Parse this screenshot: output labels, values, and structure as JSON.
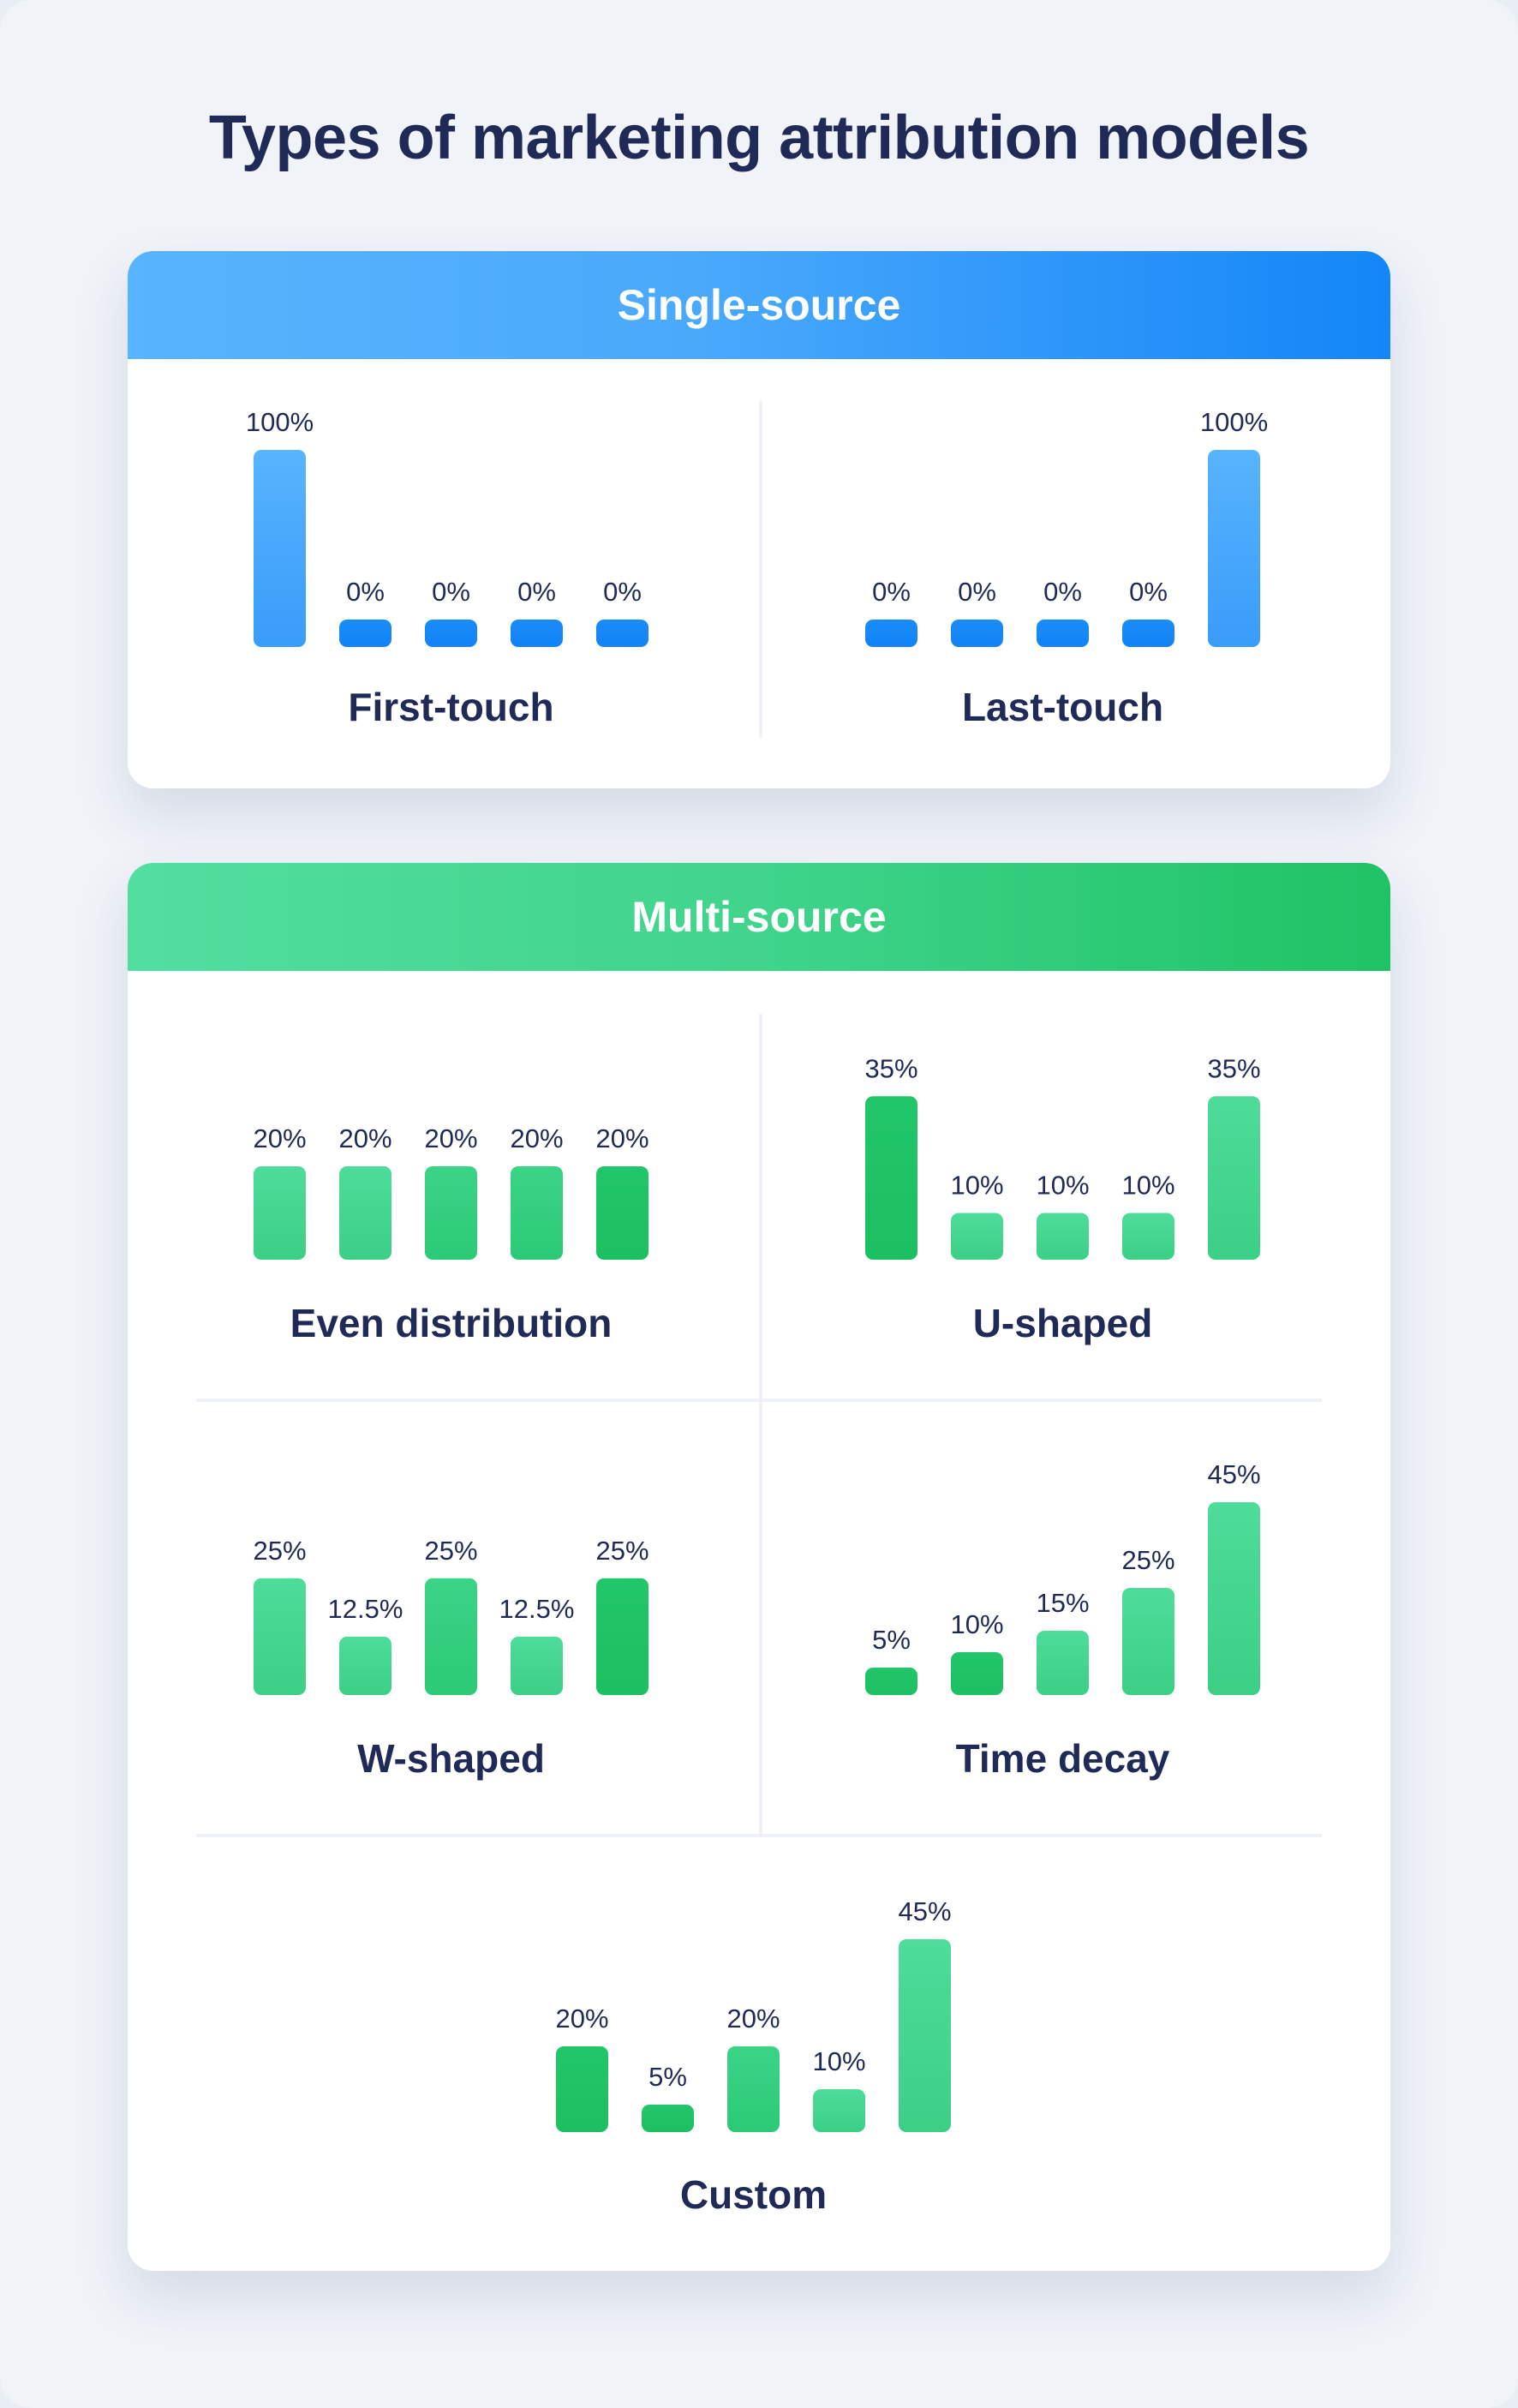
{
  "page": {
    "title": "Types of marketing attribution models"
  },
  "sections": [
    {
      "id": "single",
      "title": "Single-source"
    },
    {
      "id": "multi",
      "title": "Multi-source"
    }
  ],
  "colors": {
    "blue_light": "#57b4fd",
    "blue_dark": "#1486f8",
    "green_light": "#52de9f",
    "green_dark": "#1fc365",
    "text": "#1f2a56"
  },
  "chart_data": [
    {
      "type": "bar",
      "section": "Single-source",
      "title": "First-touch",
      "categories": [
        "",
        "",
        "",
        "",
        ""
      ],
      "values": [
        100,
        0,
        0,
        0,
        0
      ],
      "labels": [
        "100%",
        "0%",
        "0%",
        "0%",
        "0%"
      ],
      "ylim": [
        0,
        100
      ]
    },
    {
      "type": "bar",
      "section": "Single-source",
      "title": "Last-touch",
      "categories": [
        "",
        "",
        "",
        "",
        ""
      ],
      "values": [
        0,
        0,
        0,
        0,
        100
      ],
      "labels": [
        "0%",
        "0%",
        "0%",
        "0%",
        "100%"
      ],
      "ylim": [
        0,
        100
      ]
    },
    {
      "type": "bar",
      "section": "Multi-source",
      "title": "Even distribution",
      "categories": [
        "",
        "",
        "",
        "",
        ""
      ],
      "values": [
        20,
        20,
        20,
        20,
        20
      ],
      "labels": [
        "20%",
        "20%",
        "20%",
        "20%",
        "20%"
      ],
      "ylim": [
        0,
        45
      ]
    },
    {
      "type": "bar",
      "section": "Multi-source",
      "title": "U-shaped",
      "categories": [
        "",
        "",
        "",
        "",
        ""
      ],
      "values": [
        35,
        10,
        10,
        10,
        35
      ],
      "labels": [
        "35%",
        "10%",
        "10%",
        "10%",
        "35%"
      ],
      "ylim": [
        0,
        45
      ]
    },
    {
      "type": "bar",
      "section": "Multi-source",
      "title": "W-shaped",
      "categories": [
        "",
        "",
        "",
        "",
        ""
      ],
      "values": [
        25,
        12.5,
        25,
        12.5,
        25
      ],
      "labels": [
        "25%",
        "12.5%",
        "25%",
        "12.5%",
        "25%"
      ],
      "ylim": [
        0,
        45
      ]
    },
    {
      "type": "bar",
      "section": "Multi-source",
      "title": "Time decay",
      "categories": [
        "",
        "",
        "",
        "",
        ""
      ],
      "values": [
        5,
        10,
        15,
        25,
        45
      ],
      "labels": [
        "5%",
        "10%",
        "15%",
        "25%",
        "45%"
      ],
      "ylim": [
        0,
        45
      ]
    },
    {
      "type": "bar",
      "section": "Multi-source",
      "title": "Custom",
      "categories": [
        "",
        "",
        "",
        "",
        ""
      ],
      "values": [
        20,
        5,
        20,
        10,
        45
      ],
      "labels": [
        "20%",
        "5%",
        "20%",
        "10%",
        "45%"
      ],
      "ylim": [
        0,
        45
      ]
    }
  ]
}
